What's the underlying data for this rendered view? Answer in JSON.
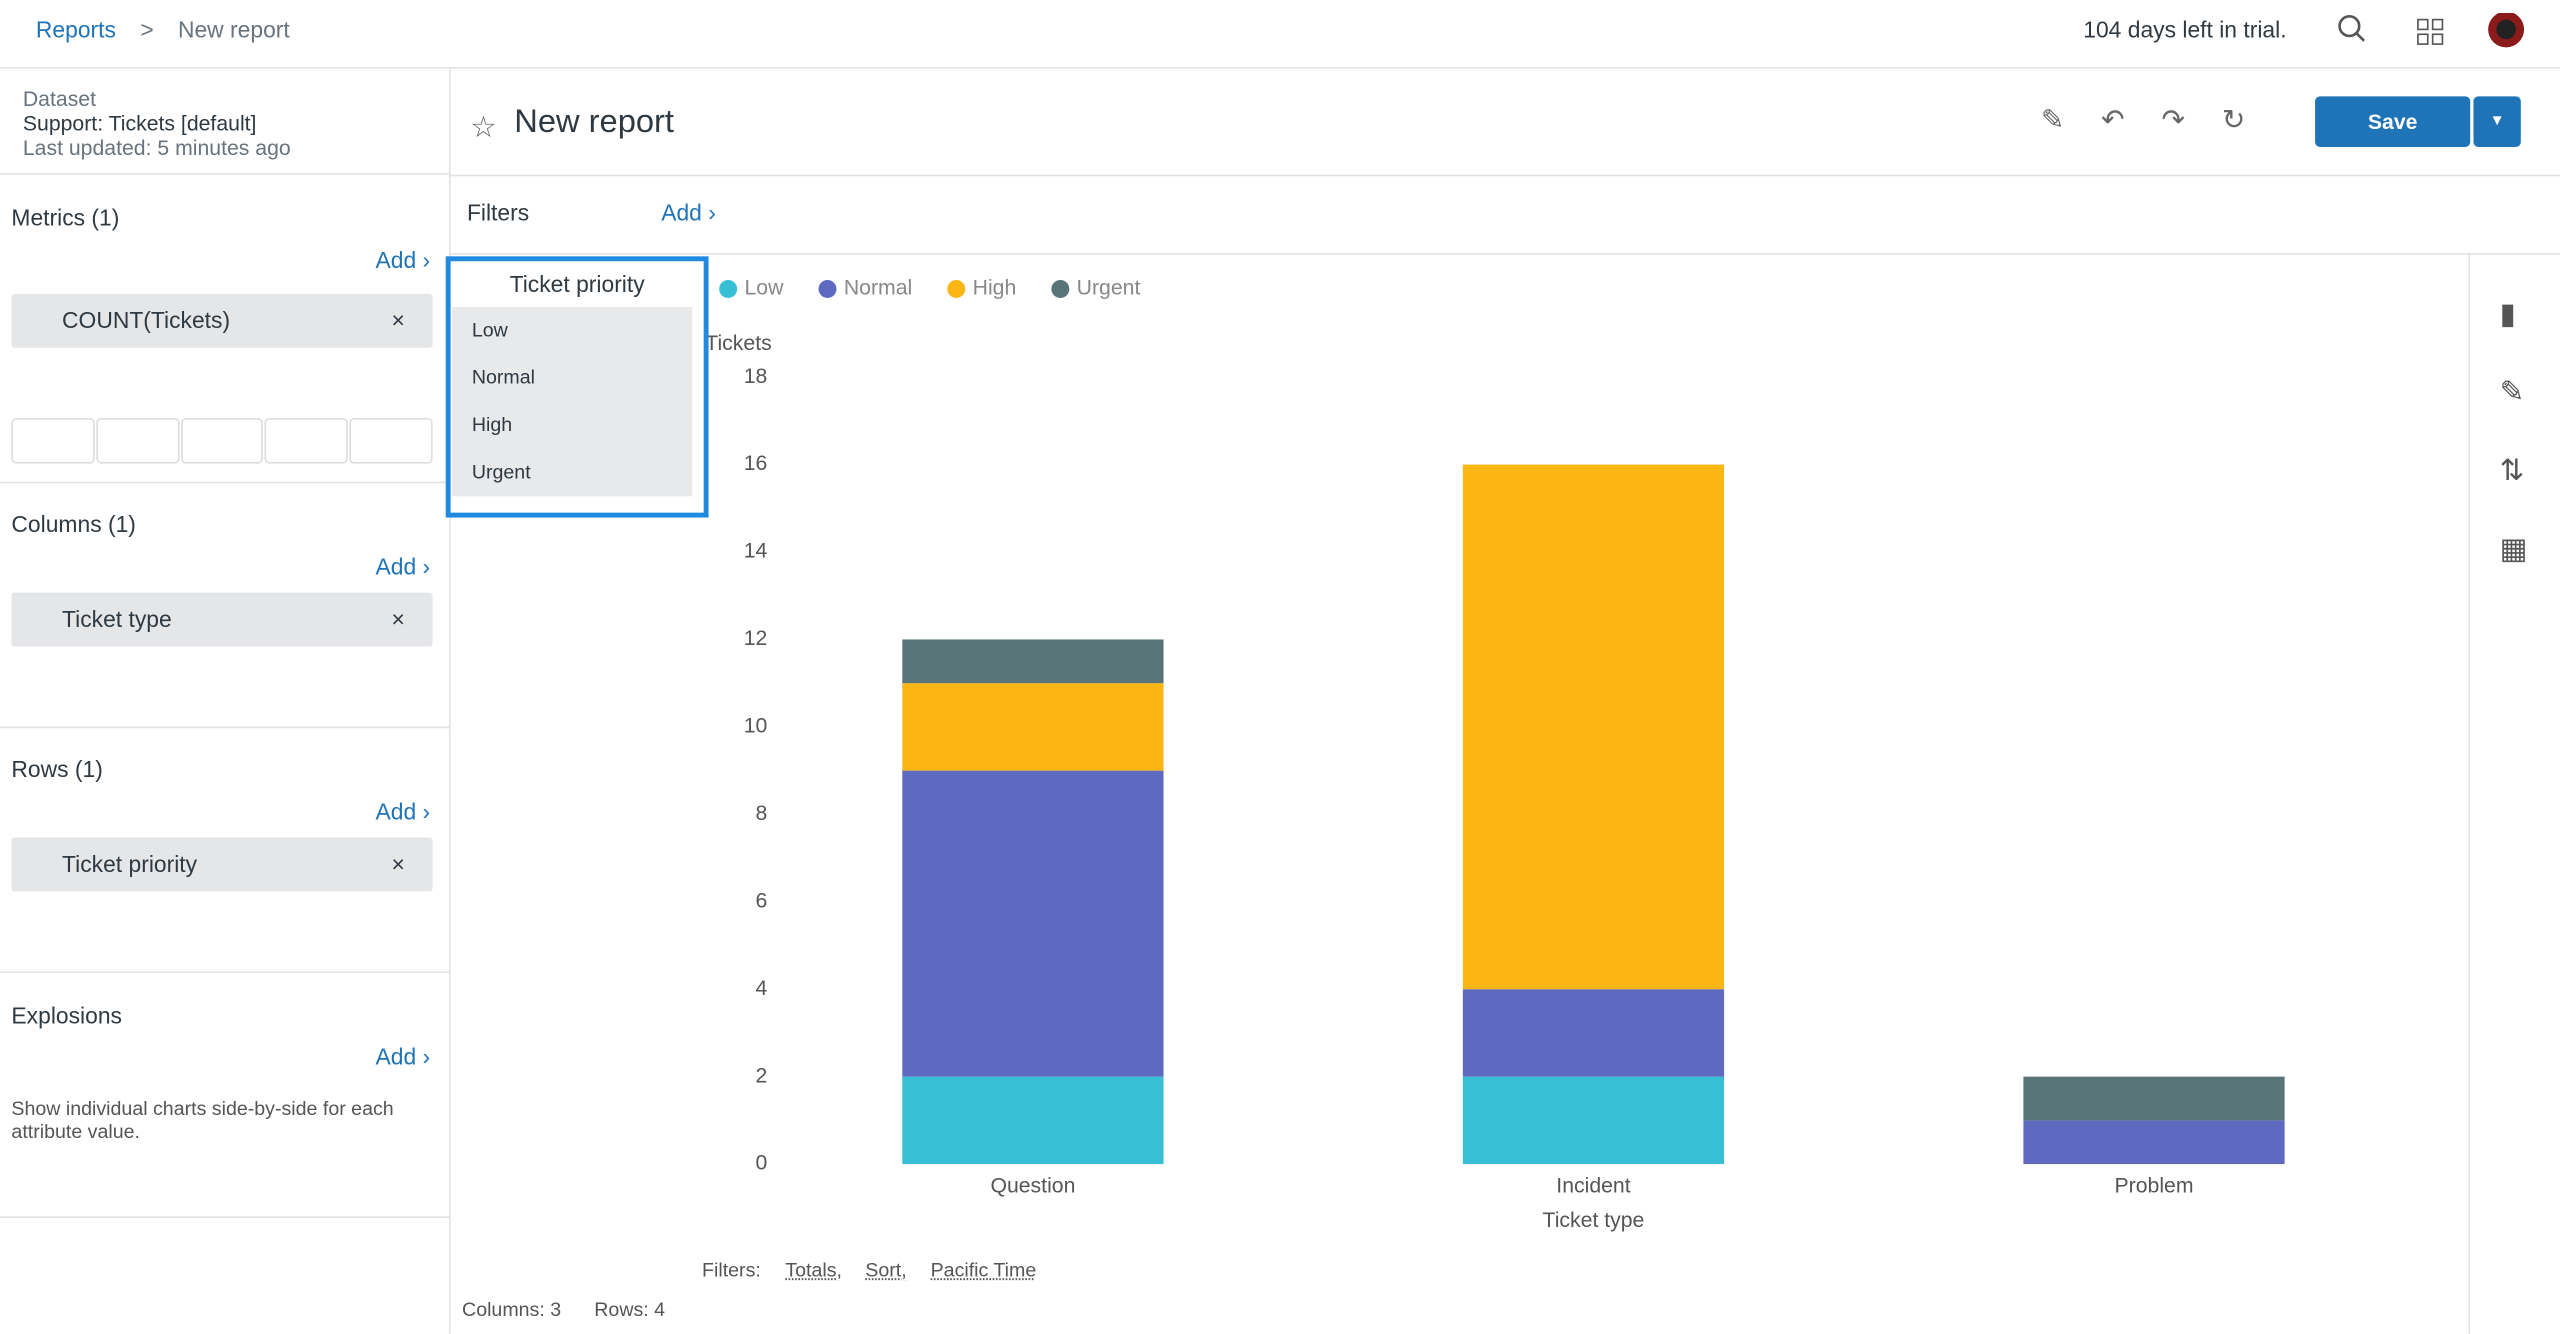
{
  "topbar": {
    "breadcrumb": [
      "Reports",
      ">",
      "New report"
    ],
    "trial": "104 days left in trial."
  },
  "sidebar": {
    "dataset_label": "Dataset",
    "dataset": "Support: Tickets [default]",
    "updated": "Last updated: 5 minutes ago",
    "sections": [
      {
        "title": "Metrics (1)",
        "add": "Add",
        "chip": "COUNT(Tickets)"
      },
      {
        "title": "Columns (1)",
        "add": "Add",
        "chip": "Ticket type"
      },
      {
        "title": "Rows (1)",
        "add": "Add",
        "chip": "Ticket priority"
      },
      {
        "title": "Explosions",
        "add": "Add",
        "note": "Show individual charts side-by-side for each attribute value."
      }
    ]
  },
  "header": {
    "title": "New report",
    "save": "Save",
    "filters": "Filters",
    "add": "Add"
  },
  "dropdown": {
    "title": "Ticket priority",
    "options": [
      "Low",
      "Normal",
      "High",
      "Urgent"
    ]
  },
  "chart_data": {
    "type": "stacked-bar",
    "x_label": "Ticket type",
    "y_label": "Tickets",
    "categories": [
      "Question",
      "Incident",
      "Problem"
    ],
    "series": [
      {
        "name": "Low",
        "color": "#37bfd6",
        "values": [
          2,
          2,
          0
        ]
      },
      {
        "name": "Normal",
        "color": "#5e6abf",
        "values": [
          7,
          2,
          1
        ]
      },
      {
        "name": "High",
        "color": "#fbb614",
        "values": [
          2,
          12,
          0
        ]
      },
      {
        "name": "Urgent",
        "color": "#587476",
        "values": [
          1,
          0,
          1
        ]
      }
    ],
    "ylim": [
      0,
      18
    ],
    "yticks": [
      0,
      2,
      4,
      6,
      8,
      10,
      12,
      14,
      16,
      18
    ],
    "grid": false
  },
  "footer": {
    "filters": "Filters:",
    "links": [
      "Totals,",
      "Sort,",
      "Pacific Time"
    ],
    "columns": "Columns: 3",
    "rows": "Rows: 4"
  }
}
